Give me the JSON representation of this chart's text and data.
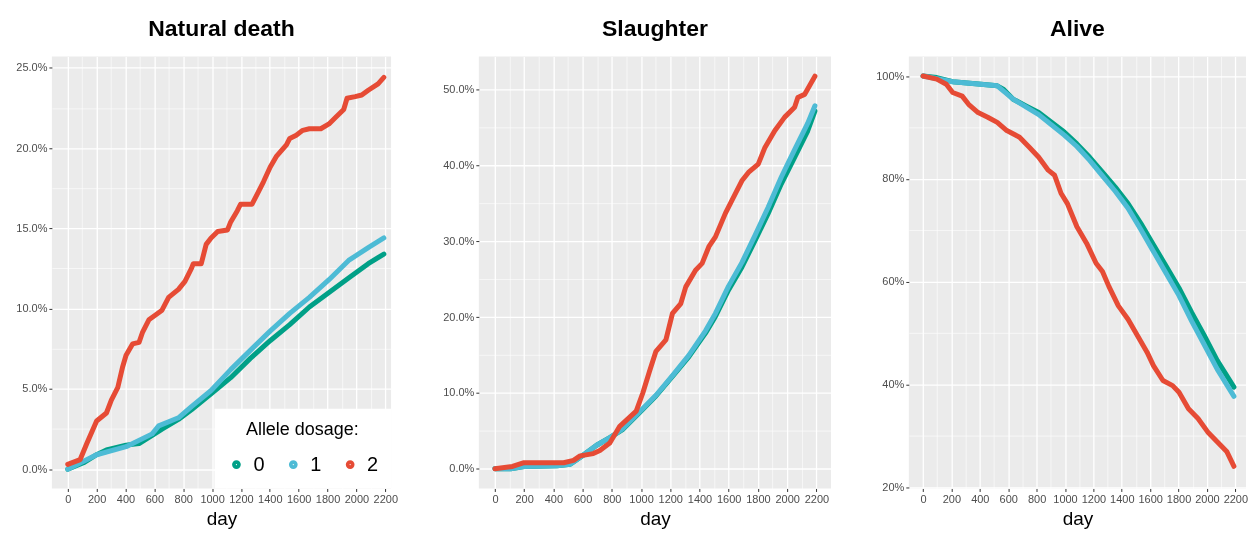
{
  "chart_data": [
    {
      "type": "line",
      "title": "Natural death",
      "xlabel": "day",
      "legend_title": "Allele dosage:",
      "legend": "bottom right",
      "grid": true,
      "xlim": [
        -110,
        2240
      ],
      "ylim": [
        -1.2,
        25.7
      ],
      "xticks": [
        0,
        {
          "value": 100,
          "label": null
        },
        200,
        {
          "value": 300,
          "label": null
        },
        400,
        {
          "value": 500,
          "label": null
        },
        600,
        {
          "value": 700,
          "label": null
        },
        800,
        {
          "value": 900,
          "label": null
        },
        1000,
        {
          "value": 1100,
          "label": null
        },
        1200,
        {
          "value": 1300,
          "label": null
        },
        1400,
        {
          "value": 1500,
          "label": null
        },
        1600,
        {
          "value": 1700,
          "label": null
        },
        1800,
        {
          "value": 1900,
          "label": null
        },
        2000,
        {
          "value": 2100,
          "label": null
        },
        2200
      ],
      "yticks": [
        {
          "value": 0,
          "label": "0.0%"
        },
        {
          "value": 2.5,
          "label": null
        },
        {
          "value": 5,
          "label": "5.0%"
        },
        {
          "value": 7.5,
          "label": null
        },
        {
          "value": 10,
          "label": "10.0%"
        },
        {
          "value": 12.5,
          "label": null
        },
        {
          "value": 15,
          "label": "15.0%"
        },
        {
          "value": 17.5,
          "label": null
        },
        {
          "value": 20,
          "label": "20.0%"
        },
        {
          "value": 22.5,
          "label": null
        },
        {
          "value": 25,
          "label": "25.0%"
        }
      ],
      "series": [
        {
          "name": "0",
          "color": "#00A087",
          "x": [
            0,
            109,
            200,
            268,
            404,
            494,
            585,
            653,
            767,
            857,
            993,
            1129,
            1265,
            1402,
            1538,
            1674,
            1810,
            1946,
            2082,
            2190
          ],
          "values": [
            0.0,
            0.4,
            0.9,
            1.2,
            1.5,
            1.6,
            2.1,
            2.5,
            3.1,
            3.7,
            4.7,
            5.7,
            6.9,
            8.0,
            9.0,
            10.1,
            11.0,
            11.9,
            12.8,
            13.4
          ]
        },
        {
          "name": "1",
          "color": "#4DBBD5",
          "x": [
            0,
            200,
            404,
            585,
            630,
            767,
            857,
            993,
            1129,
            1265,
            1402,
            1538,
            1674,
            1810,
            1946,
            2082,
            2190
          ],
          "values": [
            0.0,
            0.9,
            1.4,
            2.2,
            2.7,
            3.2,
            3.9,
            4.9,
            6.2,
            7.4,
            8.6,
            9.7,
            10.7,
            11.8,
            13.0,
            13.8,
            14.4
          ]
        },
        {
          "name": "2",
          "color": "#E64B35",
          "x": [
            0,
            86,
            132,
            200,
            268,
            302,
            347,
            381,
            404,
            449,
            494,
            517,
            562,
            608,
            653,
            699,
            767,
            812,
            857,
            870,
            925,
            959,
            993,
            1039,
            1107,
            1129,
            1175,
            1197,
            1277,
            1311,
            1356,
            1402,
            1447,
            1515,
            1538,
            1583,
            1628,
            1674,
            1753,
            1810,
            1855,
            1912,
            1935,
            1991,
            2037,
            2082,
            2150,
            2190
          ],
          "values": [
            0.3,
            0.6,
            1.6,
            3.0,
            3.5,
            4.3,
            5.1,
            6.4,
            7.1,
            7.8,
            7.9,
            8.5,
            9.3,
            9.6,
            9.9,
            10.7,
            11.2,
            11.7,
            12.5,
            12.8,
            12.8,
            14.0,
            14.4,
            14.8,
            14.9,
            15.4,
            16.1,
            16.5,
            16.5,
            17.1,
            17.9,
            18.8,
            19.5,
            20.2,
            20.6,
            20.8,
            21.1,
            21.2,
            21.2,
            21.5,
            21.9,
            22.4,
            23.1,
            23.2,
            23.3,
            23.6,
            24.0,
            24.4
          ]
        }
      ]
    },
    {
      "type": "line",
      "title": "Slaughter",
      "xlabel": "day",
      "grid": true,
      "xlim": [
        -110,
        2300
      ],
      "ylim": [
        -2.6,
        54.4
      ],
      "xticks": [
        0,
        {
          "value": 100,
          "label": null
        },
        200,
        {
          "value": 300,
          "label": null
        },
        400,
        {
          "value": 500,
          "label": null
        },
        600,
        {
          "value": 700,
          "label": null
        },
        800,
        {
          "value": 900,
          "label": null
        },
        1000,
        {
          "value": 1100,
          "label": null
        },
        1200,
        {
          "value": 1300,
          "label": null
        },
        1400,
        {
          "value": 1500,
          "label": null
        },
        1600,
        {
          "value": 1700,
          "label": null
        },
        1800,
        {
          "value": 1900,
          "label": null
        },
        2000,
        {
          "value": 2100,
          "label": null
        },
        2200
      ],
      "yticks": [
        {
          "value": 0,
          "label": "0.0%"
        },
        {
          "value": 5,
          "label": null
        },
        {
          "value": 10,
          "label": "10.0%"
        },
        {
          "value": 15,
          "label": null
        },
        {
          "value": 20,
          "label": "20.0%"
        },
        {
          "value": 25,
          "label": null
        },
        {
          "value": 30,
          "label": "30.0%"
        },
        {
          "value": 35,
          "label": null
        },
        {
          "value": 40,
          "label": "40.0%"
        },
        {
          "value": 45,
          "label": null
        },
        {
          "value": 50,
          "label": "50.0%"
        }
      ],
      "series": [
        {
          "color": "#00A087",
          "x": [
            0,
            108,
            199,
            425,
            515,
            605,
            696,
            786,
            876,
            989,
            1102,
            1215,
            1328,
            1441,
            1509,
            1599,
            1690,
            1780,
            1870,
            1960,
            2051,
            2141,
            2190
          ],
          "values": [
            0,
            0,
            0.3,
            0.4,
            0.6,
            1.8,
            3.1,
            4.1,
            5.2,
            7.4,
            9.6,
            12.2,
            14.8,
            17.9,
            20.1,
            23.6,
            26.6,
            30.1,
            33.7,
            37.6,
            41.1,
            44.6,
            47.2
          ]
        },
        {
          "color": "#4DBBD5",
          "x": [
            0,
            108,
            199,
            425,
            515,
            605,
            696,
            786,
            876,
            989,
            1102,
            1215,
            1328,
            1441,
            1509,
            1599,
            1690,
            1780,
            1870,
            1960,
            2051,
            2141,
            2190
          ],
          "values": [
            0,
            0,
            0.3,
            0.4,
            0.6,
            1.8,
            3.1,
            4.1,
            5.3,
            7.5,
            9.7,
            12.3,
            15.0,
            18.2,
            20.5,
            24.1,
            27.2,
            30.8,
            34.5,
            38.5,
            42.1,
            45.6,
            47.9
          ]
        },
        {
          "color": "#E64B35",
          "x": [
            0,
            120,
            199,
            470,
            538,
            583,
            673,
            718,
            786,
            854,
            967,
            1012,
            1057,
            1102,
            1170,
            1215,
            1272,
            1306,
            1373,
            1418,
            1464,
            1509,
            1577,
            1622,
            1690,
            1735,
            1802,
            1848,
            1915,
            1983,
            2051,
            2073,
            2119,
            2190
          ],
          "values": [
            0,
            0.3,
            0.8,
            0.8,
            1.1,
            1.7,
            2.0,
            2.4,
            3.4,
            5.6,
            7.6,
            10.0,
            12.8,
            15.5,
            17.0,
            20.5,
            21.8,
            24.0,
            26.2,
            27.1,
            29.3,
            30.6,
            33.7,
            35.4,
            38.0,
            39.1,
            40.2,
            42.4,
            44.6,
            46.4,
            47.7,
            49.0,
            49.4,
            51.8
          ]
        }
      ]
    },
    {
      "type": "line",
      "title": "Alive",
      "xlabel": "day",
      "grid": true,
      "xlim": [
        -100,
        2275
      ],
      "ylim": [
        19.8,
        103.8
      ],
      "xticks": [
        0,
        {
          "value": 100,
          "label": null
        },
        200,
        {
          "value": 300,
          "label": null
        },
        400,
        {
          "value": 500,
          "label": null
        },
        600,
        {
          "value": 700,
          "label": null
        },
        800,
        {
          "value": 900,
          "label": null
        },
        1000,
        {
          "value": 1100,
          "label": null
        },
        1200,
        {
          "value": 1300,
          "label": null
        },
        1400,
        {
          "value": 1500,
          "label": null
        },
        1600,
        {
          "value": 1700,
          "label": null
        },
        1800,
        {
          "value": 1900,
          "label": null
        },
        2000,
        {
          "value": 2100,
          "label": null
        },
        2200
      ],
      "yticks": [
        {
          "value": 20,
          "label": "20%"
        },
        {
          "value": 30,
          "label": null
        },
        {
          "value": 40,
          "label": "40%"
        },
        {
          "value": 50,
          "label": null
        },
        {
          "value": 60,
          "label": "60%"
        },
        {
          "value": 70,
          "label": null
        },
        {
          "value": 80,
          "label": "80%"
        },
        {
          "value": 90,
          "label": null
        },
        {
          "value": 100,
          "label": "100%"
        }
      ],
      "series": [
        {
          "color": "#00A087",
          "x": [
            0,
            97,
            209,
            411,
            523,
            568,
            635,
            725,
            815,
            905,
            995,
            1084,
            1174,
            1264,
            1354,
            1444,
            1533,
            1623,
            1713,
            1803,
            1893,
            1982,
            2072,
            2190
          ],
          "values": [
            100,
            99.7,
            98.9,
            98.4,
            98.1,
            97.4,
            95.5,
            94.2,
            92.9,
            91.0,
            89.1,
            86.8,
            84.2,
            81.3,
            78.4,
            75.2,
            71.4,
            67.2,
            63.0,
            58.8,
            54.0,
            49.5,
            44.7,
            39.5
          ]
        },
        {
          "color": "#4DBBD5",
          "x": [
            0,
            209,
            523,
            635,
            725,
            815,
            905,
            995,
            1084,
            1174,
            1264,
            1354,
            1444,
            1533,
            1623,
            1713,
            1803,
            1893,
            1982,
            2072,
            2190
          ],
          "values": [
            100,
            98.9,
            98.1,
            95.5,
            94.0,
            92.5,
            90.5,
            88.5,
            86.3,
            83.6,
            80.6,
            77.6,
            74.3,
            70.2,
            65.9,
            61.6,
            57.3,
            52.3,
            47.7,
            43.0,
            37.7
          ]
        },
        {
          "color": "#E64B35",
          "x": [
            0,
            97,
            164,
            209,
            276,
            321,
            388,
            456,
            523,
            590,
            680,
            747,
            815,
            882,
            927,
            972,
            1017,
            1084,
            1152,
            1219,
            1264,
            1309,
            1376,
            1444,
            1511,
            1578,
            1623,
            1690,
            1758,
            1803,
            1870,
            1937,
            2005,
            2072,
            2139,
            2190
          ],
          "values": [
            100,
            99.4,
            98.4,
            96.8,
            96.1,
            94.5,
            92.9,
            92.0,
            91.0,
            89.4,
            88.1,
            86.2,
            84.2,
            81.7,
            80.7,
            77.2,
            75.2,
            70.7,
            67.5,
            63.6,
            62.0,
            59.1,
            55.3,
            52.7,
            49.5,
            46.3,
            43.7,
            40.8,
            39.8,
            38.5,
            35.3,
            33.4,
            30.8,
            28.9,
            27.0,
            24.1
          ]
        }
      ]
    }
  ]
}
